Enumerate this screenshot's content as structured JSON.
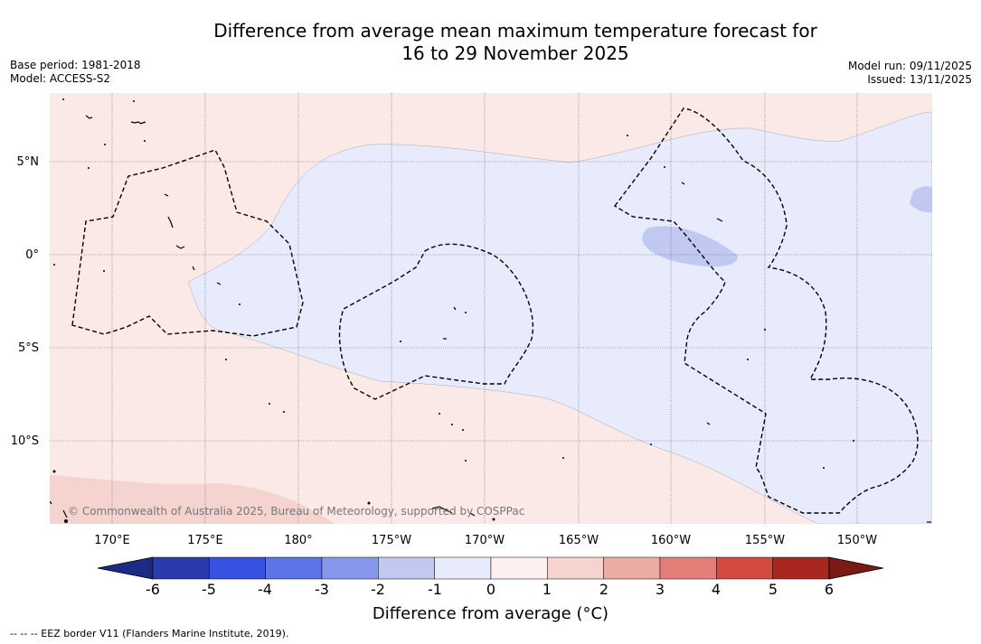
{
  "title": {
    "line1": "Difference from average mean maximum temperature forecast for",
    "line2": "16 to 29 November 2025"
  },
  "meta_left": {
    "base_period": "Base period: 1981-2018",
    "model": "Model: ACCESS-S2"
  },
  "meta_right": {
    "model_run": "Model run: 09/11/2025",
    "issued": "Issued: 13/11/2025"
  },
  "map": {
    "lat_labels": [
      "5°N",
      "0°",
      "5°S",
      "10°S"
    ],
    "lon_labels": [
      "170°E",
      "175°E",
      "180°",
      "175°W",
      "170°W",
      "165°W",
      "160°W",
      "155°W",
      "150°W"
    ],
    "copyright": "© Commonwealth of Australia 2025, Bureau of Meteorology, supported by COSPPac",
    "colors": {
      "warm_light": "#fbe9e7",
      "warm_medium": "#f5d3ce",
      "cool_light": "#e8ebfb",
      "cool_medium": "#c1c8f1"
    }
  },
  "colorbar": {
    "labels": [
      "-6",
      "-5",
      "-4",
      "-3",
      "-2",
      "-1",
      "0",
      "1",
      "2",
      "3",
      "4",
      "5",
      "6"
    ],
    "colors": [
      "#1b2b85",
      "#2a3bab",
      "#3652e0",
      "#5b74e6",
      "#8797eb",
      "#c1c8f1",
      "#e8ebfb",
      "#fdf0ef",
      "#f5d3ce",
      "#eaaca5",
      "#e27f78",
      "#d44a42",
      "#a8281f",
      "#7a1a14"
    ],
    "title": "Difference from average (°C)"
  },
  "footer": {
    "eez": "--  --  -- EEZ border V11 (Flanders Marine Institute, 2019)."
  }
}
